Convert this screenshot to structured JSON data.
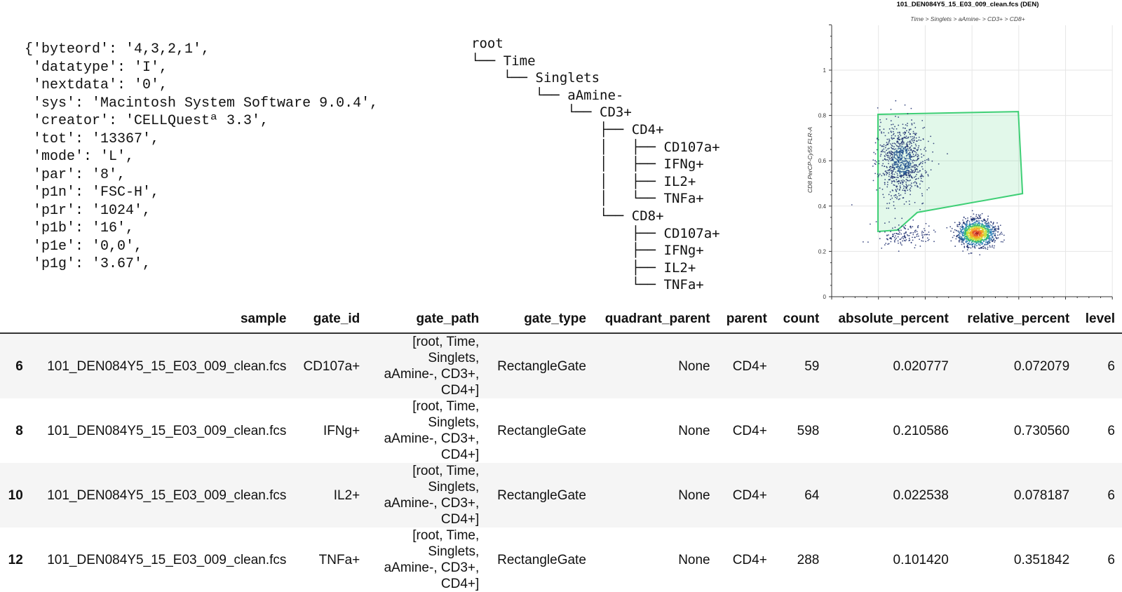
{
  "metadata_lines": [
    "{'byteord': '4,3,2,1',",
    " 'datatype': 'I',",
    " 'nextdata': '0',",
    " 'sys': 'Macintosh System Software 9.0.4',",
    " 'creator': 'CELLQuestª 3.3',",
    " 'tot': '13367',",
    " 'mode': 'L',",
    " 'par': '8',",
    " 'p1n': 'FSC-H',",
    " 'p1r': '1024',",
    " 'p1b': '16',",
    " 'p1e': '0,0',",
    " 'p1g': '3.67',"
  ],
  "tree_lines": [
    "root",
    "└── Time",
    "    └── Singlets",
    "        └── aAmine-",
    "            └── CD3+",
    "                ├── CD4+",
    "                │   ├── CD107a+",
    "                │   ├── IFNg+",
    "                │   ├── IL2+",
    "                │   └── TNFa+",
    "                └── CD8+",
    "                    ├── CD107a+",
    "                    ├── IFNg+",
    "                    ├── IL2+",
    "                    └── TNFa+"
  ],
  "chart_data": {
    "type": "scatter",
    "title": "101_DEN084Y5_15_E03_009_clean.fcs (DEN)",
    "subtitle": "Time > Singlets > aAmine- > CD3+ > CD8+",
    "ylabel": "CD8 PerCP-Cy55 FLR-A",
    "xlabel": "",
    "xlim": [
      0,
      1.2
    ],
    "ylim": [
      0,
      1.2
    ],
    "yticks": [
      "0",
      "0.2",
      "0.4",
      "0.6",
      "0.8",
      "1"
    ],
    "grid": true,
    "gate_color": "#3ecf75",
    "gate_polygon": [
      [
        0.198,
        0.805
      ],
      [
        0.798,
        0.817
      ],
      [
        0.816,
        0.455
      ],
      [
        0.366,
        0.372
      ],
      [
        0.282,
        0.294
      ],
      [
        0.198,
        0.288
      ]
    ],
    "clusters": [
      {
        "center": [
          0.3,
          0.6
        ],
        "spread": [
          0.05,
          0.08
        ],
        "n": 900
      },
      {
        "center": [
          0.31,
          0.27
        ],
        "spread": [
          0.06,
          0.025
        ],
        "n": 150
      },
      {
        "center": [
          0.62,
          0.28
        ],
        "spread": [
          0.04,
          0.03
        ],
        "n": 1200
      }
    ]
  },
  "table": {
    "columns": [
      "",
      "sample",
      "gate_id",
      "gate_path",
      "gate_type",
      "quadrant_parent",
      "parent",
      "count",
      "absolute_percent",
      "relative_percent",
      "level"
    ],
    "rows": [
      [
        "6",
        "101_DEN084Y5_15_E03_009_clean.fcs",
        "CD107a+",
        "[root, Time, Singlets, aAmine-, CD3+, CD4+]",
        "RectangleGate",
        "None",
        "CD4+",
        "59",
        "0.020777",
        "0.072079",
        "6"
      ],
      [
        "8",
        "101_DEN084Y5_15_E03_009_clean.fcs",
        "IFNg+",
        "[root, Time, Singlets, aAmine-, CD3+, CD4+]",
        "RectangleGate",
        "None",
        "CD4+",
        "598",
        "0.210586",
        "0.730560",
        "6"
      ],
      [
        "10",
        "101_DEN084Y5_15_E03_009_clean.fcs",
        "IL2+",
        "[root, Time, Singlets, aAmine-, CD3+, CD4+]",
        "RectangleGate",
        "None",
        "CD4+",
        "64",
        "0.022538",
        "0.078187",
        "6"
      ],
      [
        "12",
        "101_DEN084Y5_15_E03_009_clean.fcs",
        "TNFa+",
        "[root, Time, Singlets, aAmine-, CD3+, CD4+]",
        "RectangleGate",
        "None",
        "CD4+",
        "288",
        "0.101420",
        "0.351842",
        "6"
      ]
    ]
  }
}
